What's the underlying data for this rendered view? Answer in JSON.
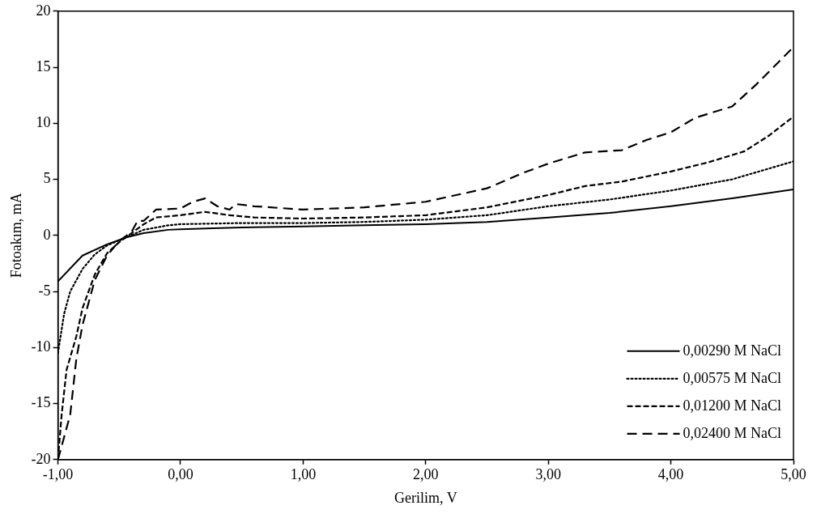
{
  "chart_data": {
    "type": "line",
    "xlabel": "Gerilim, V",
    "ylabel": "Fotoakım, mA",
    "xlim": [
      -1,
      5
    ],
    "ylim": [
      -20,
      20
    ],
    "xticks": [
      {
        "value": -1,
        "label": "-1,00"
      },
      {
        "value": 0,
        "label": "0,00"
      },
      {
        "value": 1,
        "label": "1,00"
      },
      {
        "value": 2,
        "label": "2,00"
      },
      {
        "value": 3,
        "label": "3,00"
      },
      {
        "value": 4,
        "label": "4,00"
      },
      {
        "value": 5,
        "label": "5,00"
      }
    ],
    "yticks": [
      -20,
      -15,
      -10,
      -5,
      0,
      5,
      10,
      15,
      20
    ],
    "grid": false,
    "legend": "bottom right",
    "marker": "none",
    "series": [
      {
        "name": "0,00290 M NaCl",
        "color": "#000000",
        "line_style": "solid",
        "x": [
          -1,
          -0.8,
          -0.6,
          -0.45,
          -0.3,
          -0.1,
          0,
          0.5,
          1,
          1.5,
          2,
          2.5,
          3,
          3.5,
          4,
          4.5,
          5
        ],
        "values": [
          -4.1,
          -1.8,
          -0.8,
          -0.2,
          0.2,
          0.5,
          0.55,
          0.7,
          0.8,
          0.9,
          1.0,
          1.2,
          1.6,
          2.0,
          2.6,
          3.3,
          4.1
        ]
      },
      {
        "name": "0,00575 M NaCl",
        "color": "#000000",
        "line_style": "dotted",
        "x": [
          -1,
          -0.95,
          -0.9,
          -0.8,
          -0.7,
          -0.6,
          -0.45,
          -0.3,
          -0.1,
          0,
          0.5,
          1,
          1.5,
          2,
          2.5,
          3,
          3.5,
          4,
          4.5,
          5
        ],
        "values": [
          -10.5,
          -7,
          -5,
          -3,
          -1.7,
          -0.9,
          -0.2,
          0.5,
          0.9,
          1.0,
          1.1,
          1.1,
          1.2,
          1.4,
          1.8,
          2.6,
          3.2,
          4.0,
          5.0,
          6.6
        ]
      },
      {
        "name": "0,01200 M NaCl",
        "color": "#000000",
        "line_style": "dashed",
        "x": [
          -1,
          -0.97,
          -0.93,
          -0.85,
          -0.8,
          -0.7,
          -0.6,
          -0.5,
          -0.4,
          -0.3,
          -0.2,
          0,
          0.2,
          0.4,
          0.6,
          1,
          1.5,
          2,
          2.5,
          3,
          3.3,
          3.6,
          4,
          4.3,
          4.6,
          4.8,
          5
        ],
        "values": [
          -20,
          -16,
          -12,
          -9,
          -6.5,
          -3.5,
          -1.6,
          -0.6,
          0.2,
          1.0,
          1.6,
          1.8,
          2.1,
          1.8,
          1.6,
          1.5,
          1.6,
          1.8,
          2.5,
          3.6,
          4.4,
          4.8,
          5.7,
          6.5,
          7.5,
          8.9,
          10.6
        ]
      },
      {
        "name": "0,02400 M NaCl",
        "color": "#000000",
        "line_style": "dashed",
        "x": [
          -1,
          -0.95,
          -0.9,
          -0.85,
          -0.8,
          -0.75,
          -0.7,
          -0.6,
          -0.5,
          -0.4,
          -0.35,
          -0.3,
          -0.2,
          0,
          0.1,
          0.2,
          0.3,
          0.4,
          0.45,
          0.6,
          1,
          1.5,
          2,
          2.5,
          2.8,
          3,
          3.3,
          3.6,
          3.8,
          4,
          4.2,
          4.5,
          4.7,
          5
        ],
        "values": [
          -20,
          -18,
          -16,
          -11,
          -8,
          -6,
          -4,
          -1.8,
          -0.5,
          0.3,
          1.3,
          1.3,
          2.3,
          2.4,
          3.0,
          3.3,
          2.6,
          2.3,
          2.8,
          2.6,
          2.3,
          2.5,
          3.0,
          4.2,
          5.6,
          6.4,
          7.4,
          7.6,
          8.5,
          9.2,
          10.5,
          11.5,
          13.5,
          16.8
        ]
      }
    ]
  }
}
